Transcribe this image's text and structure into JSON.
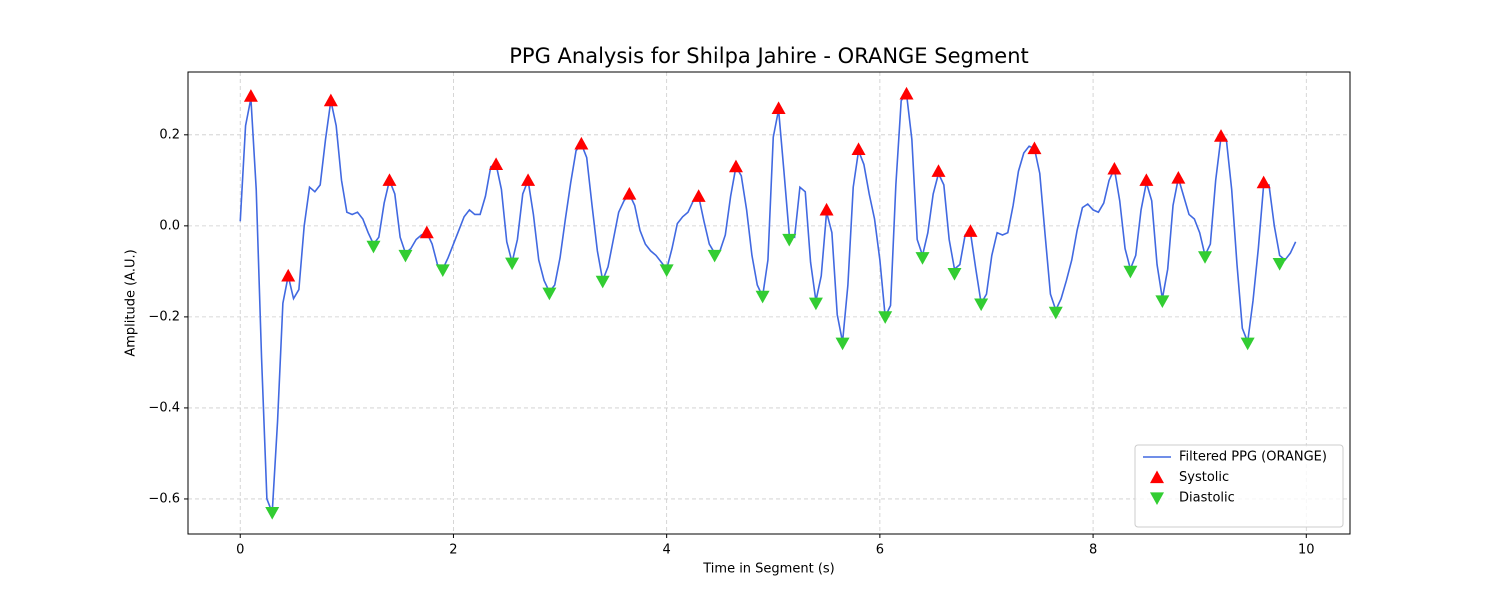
{
  "chart_data": {
    "type": "line",
    "title": "PPG Analysis for Shilpa Jahire - ORANGE Segment",
    "xlabel": "Time in Segment (s)",
    "ylabel": "Amplitude (A.U.)",
    "xlim": [
      -0.49,
      10.41
    ],
    "ylim": [
      -0.677,
      0.338
    ],
    "xticks": [
      0,
      2,
      4,
      6,
      8,
      10
    ],
    "yticks": [
      {
        "value": -0.6,
        "label": "−0.6"
      },
      {
        "value": -0.4,
        "label": "−0.4"
      },
      {
        "value": -0.2,
        "label": "−0.2"
      },
      {
        "value": 0,
        "label": "0.0"
      },
      {
        "value": 0.2,
        "label": "0.2"
      }
    ],
    "grid": true,
    "legend": "lower right",
    "series": [
      {
        "name": "Filtered PPG (ORANGE)",
        "color": "#4169e1",
        "marker": "none",
        "x": [
          0,
          0.05,
          0.1,
          0.15,
          0.2,
          0.25,
          0.3,
          0.35,
          0.4,
          0.45,
          0.5,
          0.55,
          0.6,
          0.65,
          0.7,
          0.75,
          0.8,
          0.85,
          0.9,
          0.95,
          1.0,
          1.05,
          1.1,
          1.15,
          1.2,
          1.25,
          1.3,
          1.35,
          1.4,
          1.45,
          1.5,
          1.55,
          1.6,
          1.65,
          1.7,
          1.75,
          1.8,
          1.85,
          1.9,
          1.95,
          2.0,
          2.05,
          2.1,
          2.15,
          2.2,
          2.25,
          2.3,
          2.35,
          2.4,
          2.45,
          2.5,
          2.55,
          2.6,
          2.65,
          2.7,
          2.75,
          2.8,
          2.85,
          2.9,
          2.95,
          3.0,
          3.05,
          3.1,
          3.15,
          3.2,
          3.25,
          3.3,
          3.35,
          3.4,
          3.45,
          3.5,
          3.55,
          3.6,
          3.65,
          3.7,
          3.75,
          3.8,
          3.85,
          3.9,
          3.95,
          4.0,
          4.05,
          4.1,
          4.15,
          4.2,
          4.25,
          4.3,
          4.35,
          4.4,
          4.45,
          4.5,
          4.55,
          4.6,
          4.65,
          4.7,
          4.75,
          4.8,
          4.85,
          4.9,
          4.95,
          5.0,
          5.05,
          5.1,
          5.15,
          5.2,
          5.25,
          5.3,
          5.35,
          5.4,
          5.45,
          5.5,
          5.55,
          5.6,
          5.65,
          5.7,
          5.75,
          5.8,
          5.85,
          5.9,
          5.95,
          6.0,
          6.05,
          6.1,
          6.15,
          6.2,
          6.25,
          6.3,
          6.35,
          6.4,
          6.45,
          6.5,
          6.55,
          6.6,
          6.65,
          6.7,
          6.75,
          6.8,
          6.85,
          6.9,
          6.95,
          7.0,
          7.05,
          7.1,
          7.15,
          7.2,
          7.25,
          7.3,
          7.35,
          7.4,
          7.45,
          7.5,
          7.55,
          7.6,
          7.65,
          7.7,
          7.75,
          7.8,
          7.85,
          7.9,
          7.95,
          8.0,
          8.05,
          8.1,
          8.15,
          8.2,
          8.25,
          8.3,
          8.35,
          8.4,
          8.45,
          8.5,
          8.55,
          8.6,
          8.65,
          8.7,
          8.75,
          8.8,
          8.85,
          8.9,
          8.95,
          9.0,
          9.05,
          9.1,
          9.15,
          9.2,
          9.25,
          9.3,
          9.35,
          9.4,
          9.45,
          9.5,
          9.55,
          9.6,
          9.65,
          9.7,
          9.75,
          9.8,
          9.85,
          9.9
        ],
        "values": [
          0.01,
          0.22,
          0.28,
          0.08,
          -0.29,
          -0.6,
          -0.63,
          -0.43,
          -0.17,
          -0.11,
          -0.16,
          -0.14,
          0.0,
          0.085,
          0.075,
          0.09,
          0.19,
          0.275,
          0.22,
          0.1,
          0.03,
          0.025,
          0.03,
          0.015,
          -0.015,
          -0.04,
          -0.025,
          0.05,
          0.1,
          0.07,
          -0.025,
          -0.06,
          -0.05,
          -0.03,
          -0.02,
          -0.015,
          -0.04,
          -0.085,
          -0.095,
          -0.07,
          -0.04,
          -0.01,
          0.02,
          0.035,
          0.025,
          0.025,
          0.065,
          0.13,
          0.135,
          0.08,
          -0.035,
          -0.08,
          -0.03,
          0.07,
          0.1,
          0.025,
          -0.075,
          -0.12,
          -0.145,
          -0.13,
          -0.07,
          0.015,
          0.095,
          0.165,
          0.18,
          0.15,
          0.045,
          -0.055,
          -0.12,
          -0.09,
          -0.03,
          0.03,
          0.055,
          0.07,
          0.045,
          -0.01,
          -0.04,
          -0.055,
          -0.065,
          -0.08,
          -0.095,
          -0.05,
          0.005,
          0.02,
          0.03,
          0.055,
          0.065,
          0.01,
          -0.04,
          -0.06,
          -0.055,
          -0.02,
          0.065,
          0.13,
          0.11,
          0.035,
          -0.065,
          -0.13,
          -0.155,
          -0.075,
          0.195,
          0.255,
          0.12,
          -0.02,
          -0.025,
          0.085,
          0.075,
          -0.08,
          -0.165,
          -0.11,
          0.03,
          -0.015,
          -0.195,
          -0.255,
          -0.13,
          0.085,
          0.165,
          0.135,
          0.07,
          0.015,
          -0.075,
          -0.2,
          -0.175,
          0.09,
          0.275,
          0.29,
          0.19,
          -0.03,
          -0.065,
          -0.015,
          0.07,
          0.115,
          0.09,
          -0.03,
          -0.095,
          -0.085,
          -0.02,
          -0.015,
          -0.095,
          -0.17,
          -0.15,
          -0.065,
          -0.015,
          -0.02,
          -0.015,
          0.045,
          0.12,
          0.16,
          0.175,
          0.17,
          0.115,
          -0.02,
          -0.15,
          -0.185,
          -0.16,
          -0.12,
          -0.075,
          -0.01,
          0.04,
          0.048,
          0.035,
          0.03,
          0.05,
          0.1,
          0.125,
          0.055,
          -0.05,
          -0.095,
          -0.065,
          0.035,
          0.095,
          0.055,
          -0.085,
          -0.16,
          -0.095,
          0.045,
          0.105,
          0.065,
          0.025,
          0.015,
          -0.015,
          -0.065,
          -0.04,
          0.1,
          0.195,
          0.19,
          0.08,
          -0.085,
          -0.225,
          -0.255,
          -0.165,
          -0.05,
          0.09,
          0.09,
          0.0,
          -0.065,
          -0.075,
          -0.06,
          -0.035
        ]
      },
      {
        "name": "Systolic",
        "color": "#ff0000",
        "marker": "triangle-up",
        "x": [
          0.1,
          0.45,
          0.85,
          1.4,
          1.75,
          2.4,
          2.7,
          3.2,
          3.65,
          4.3,
          4.65,
          5.05,
          5.5,
          5.8,
          6.25,
          6.55,
          6.85,
          7.45,
          8.2,
          8.5,
          8.8,
          9.2,
          9.6
        ],
        "values": [
          0.285,
          -0.11,
          0.275,
          0.1,
          -0.015,
          0.135,
          0.1,
          0.18,
          0.07,
          0.065,
          0.13,
          0.258,
          0.035,
          0.168,
          0.29,
          0.12,
          -0.012,
          0.17,
          0.125,
          0.1,
          0.105,
          0.197,
          0.095
        ]
      },
      {
        "name": "Diastolic",
        "color": "#32cd32",
        "marker": "triangle-down",
        "x": [
          0.3,
          1.25,
          1.55,
          1.9,
          2.55,
          2.9,
          3.4,
          4.0,
          4.45,
          4.9,
          5.15,
          5.4,
          5.65,
          6.05,
          6.4,
          6.7,
          6.95,
          7.65,
          8.35,
          8.65,
          9.05,
          9.45,
          9.75
        ],
        "values": [
          -0.63,
          -0.045,
          -0.065,
          -0.097,
          -0.082,
          -0.148,
          -0.122,
          -0.097,
          -0.065,
          -0.155,
          -0.03,
          -0.17,
          -0.258,
          -0.2,
          -0.07,
          -0.105,
          -0.172,
          -0.19,
          -0.1,
          -0.165,
          -0.068,
          -0.258,
          -0.083
        ]
      }
    ]
  }
}
